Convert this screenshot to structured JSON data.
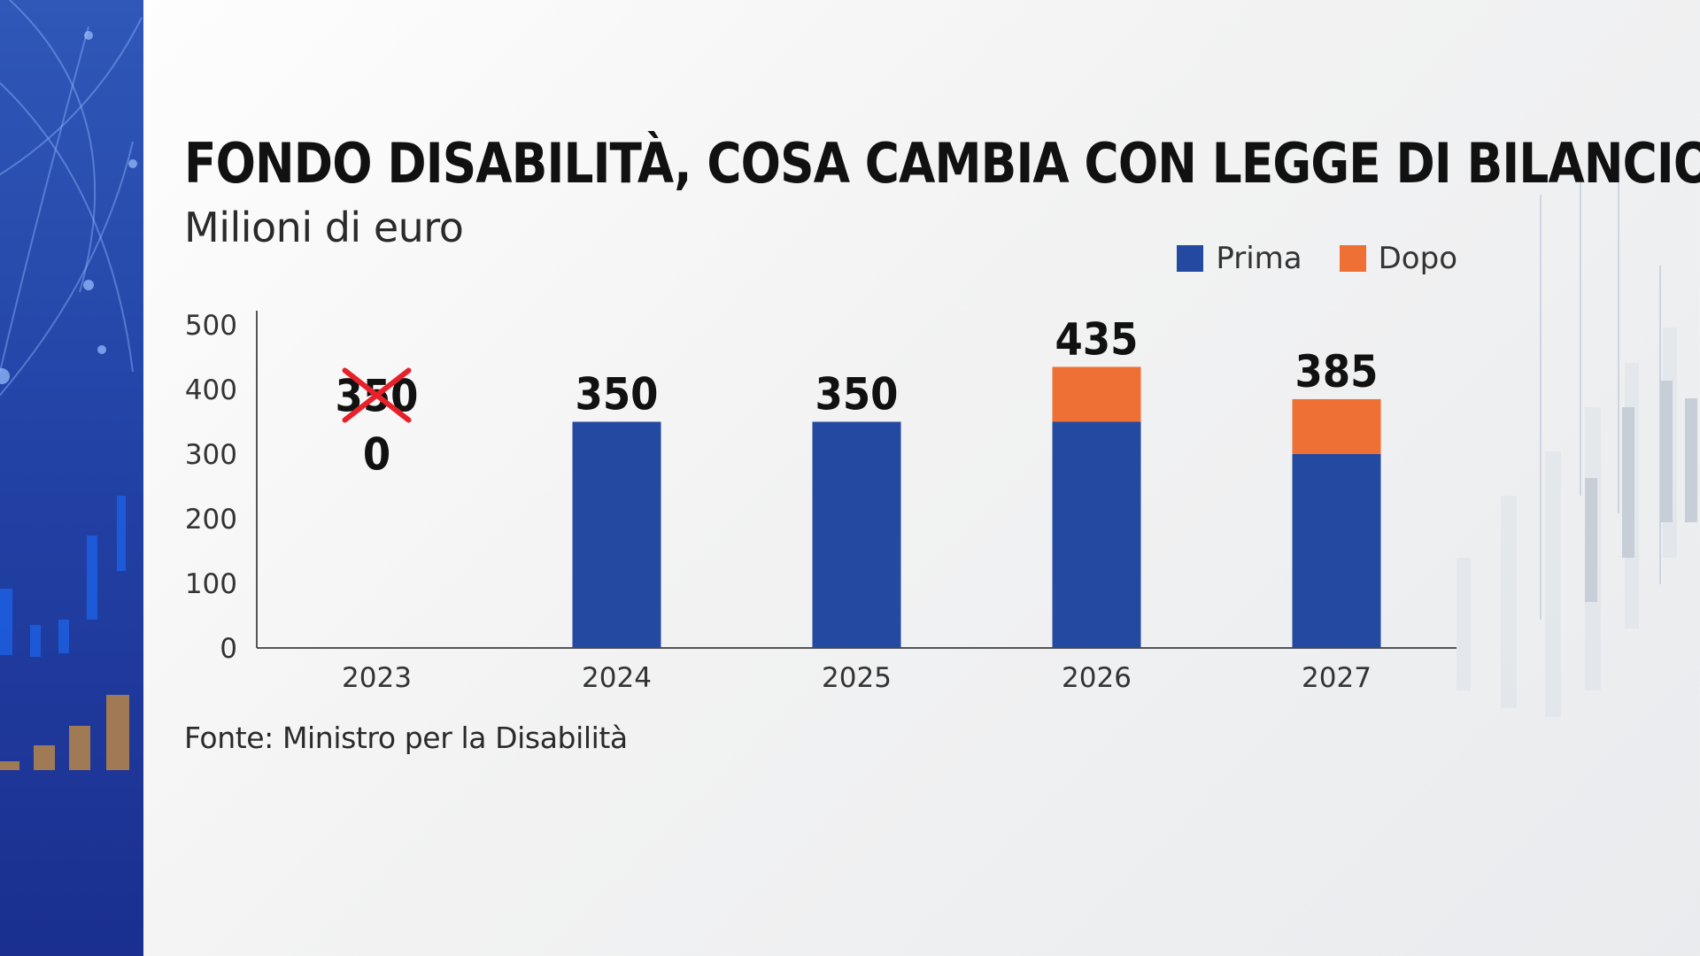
{
  "header": {
    "title": "FONDO DISABILITÀ, COSA CAMBIA CON LEGGE DI BILANCIO",
    "subtitle": "Milioni di euro"
  },
  "legend": {
    "items": [
      {
        "label": "Prima",
        "color": "#2449a0"
      },
      {
        "label": "Dopo",
        "color": "#ef7034"
      }
    ]
  },
  "source": "Fonte: Ministro per la Disabilità",
  "colors": {
    "prima": "#2449a0",
    "dopo": "#ef7034",
    "strike": "#e8202a",
    "panel": "#2343a7"
  },
  "chart_data": {
    "type": "bar",
    "stacked": true,
    "title": "FONDO DISABILITÀ, COSA CAMBIA CON LEGGE DI BILANCIO",
    "ylabel": "Milioni di euro",
    "categories": [
      "2023",
      "2024",
      "2025",
      "2026",
      "2027"
    ],
    "series": [
      {
        "name": "Prima",
        "values": [
          0,
          350,
          350,
          350,
          300
        ]
      },
      {
        "name": "Dopo",
        "values": [
          0,
          0,
          0,
          85,
          85
        ]
      }
    ],
    "data_labels": [
      "0",
      "350",
      "350",
      "435",
      "385"
    ],
    "struck_labels": [
      {
        "category": "2023",
        "text": "350"
      }
    ],
    "yticks": [
      0,
      100,
      200,
      300,
      400,
      500
    ],
    "ylim": [
      0,
      500
    ],
    "grid": false,
    "legend_position": "top-right"
  }
}
